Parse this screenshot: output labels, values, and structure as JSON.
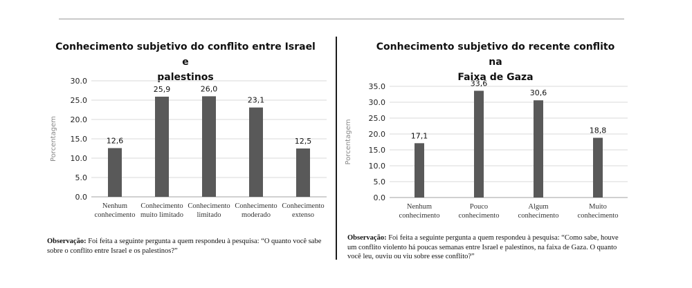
{
  "chart_data": [
    {
      "type": "bar",
      "title": "Conhecimento subjetivo do conflito entre Israel e palestinos",
      "title_lines": [
        "Conhecimento subjetivo do conflito entre Israel e",
        "palestinos"
      ],
      "ylabel": "Porcentagem",
      "ylim": [
        0,
        30
      ],
      "yticks": [
        "0.0",
        "5.0",
        "10.0",
        "15.0",
        "20.0",
        "25.0",
        "30.0"
      ],
      "categories": [
        "Nenhum conhecimento",
        "Conhecimento muito limitado",
        "Conhecimento limitado",
        "Conhecimento moderado",
        "Conhecimento extenso"
      ],
      "category_lines": [
        [
          "Nenhum",
          "conhecimento"
        ],
        [
          "Conhecimento",
          "muito limitado"
        ],
        [
          "Conhecimento",
          "limitado"
        ],
        [
          "Conhecimento",
          "moderado"
        ],
        [
          "Conhecimento",
          "extenso"
        ]
      ],
      "values": [
        12.6,
        25.9,
        26.0,
        23.1,
        12.5
      ],
      "value_labels": [
        "12,6",
        "25,9",
        "26,0",
        "23,1",
        "12,5"
      ],
      "grid": true,
      "bar_color": "#595959"
    },
    {
      "type": "bar",
      "title": "Conhecimento subjetivo do recente conflito na Faixa de Gaza",
      "title_lines": [
        "Conhecimento subjetivo do recente conflito na",
        "Faixa de Gaza"
      ],
      "ylabel": "Porcentagem",
      "ylim": [
        0,
        35
      ],
      "yticks": [
        "0.0",
        "5.0",
        "10.0",
        "15.0",
        "20.0",
        "25.0",
        "30.0",
        "35.0"
      ],
      "categories": [
        "Nenhum conhecimento",
        "Pouco conhecimento",
        "Algum conhecimento",
        "Muito conhecimento"
      ],
      "category_lines": [
        [
          "Nenhum",
          "conhecimento"
        ],
        [
          "Pouco",
          "conhecimento"
        ],
        [
          "Algum",
          "conhecimento"
        ],
        [
          "Muito",
          "conhecimento"
        ]
      ],
      "values": [
        17.1,
        33.6,
        30.6,
        18.8
      ],
      "value_labels": [
        "17,1",
        "33,6",
        "30,6",
        "18,8"
      ],
      "grid": true,
      "bar_color": "#595959"
    }
  ],
  "notes": [
    {
      "label": "Observação:",
      "lines": [
        "Foi feita a seguinte pergunta a quem respondeu à pesquisa: “O quanto você sabe",
        "sobre o conflito entre Israel e os palestinos?”"
      ]
    },
    {
      "label": "Observação:",
      "lines": [
        "Foi feita a seguinte pergunta a quem respondeu à pesquisa: “Como sabe, houve",
        "um conflito violento há poucas semanas entre Israel e palestinos, na faixa de Gaza. O quanto",
        "você leu, ouviu ou viu sobre esse conflito?”"
      ]
    }
  ]
}
